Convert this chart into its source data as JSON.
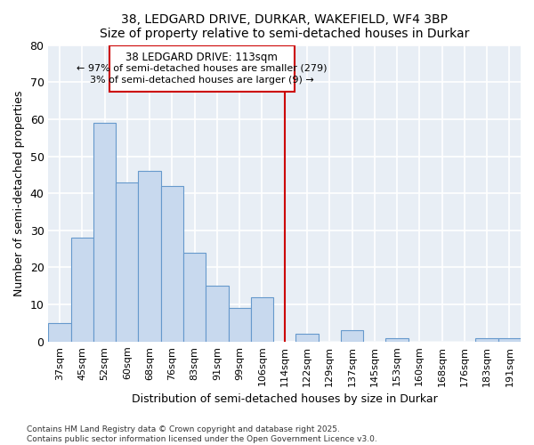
{
  "title1": "38, LEDGARD DRIVE, DURKAR, WAKEFIELD, WF4 3BP",
  "title2": "Size of property relative to semi-detached houses in Durkar",
  "xlabel": "Distribution of semi-detached houses by size in Durkar",
  "ylabel": "Number of semi-detached properties",
  "categories": [
    "37sqm",
    "45sqm",
    "52sqm",
    "60sqm",
    "68sqm",
    "76sqm",
    "83sqm",
    "91sqm",
    "99sqm",
    "106sqm",
    "114sqm",
    "122sqm",
    "129sqm",
    "137sqm",
    "145sqm",
    "153sqm",
    "160sqm",
    "168sqm",
    "176sqm",
    "183sqm",
    "191sqm"
  ],
  "values": [
    5,
    28,
    59,
    43,
    46,
    42,
    24,
    15,
    9,
    12,
    0,
    2,
    0,
    3,
    0,
    1,
    0,
    0,
    0,
    1,
    1
  ],
  "highlight_index": 10,
  "bar_color_normal": "#c8d9ee",
  "bar_edge_color": "#6699cc",
  "bar_color_highlight": "#c00000",
  "annotation_title": "38 LEDGARD DRIVE: 113sqm",
  "annotation_line1": "← 97% of semi-detached houses are smaller (279)",
  "annotation_line2": "3% of semi-detached houses are larger (9) →",
  "vline_color": "#cc0000",
  "annotation_box_color": "#cc0000",
  "ylim": [
    0,
    80
  ],
  "yticks": [
    0,
    10,
    20,
    30,
    40,
    50,
    60,
    70,
    80
  ],
  "footer1": "Contains HM Land Registry data © Crown copyright and database right 2025.",
  "footer2": "Contains public sector information licensed under the Open Government Licence v3.0.",
  "bg_color": "#e8eef5",
  "grid_color": "#ffffff"
}
